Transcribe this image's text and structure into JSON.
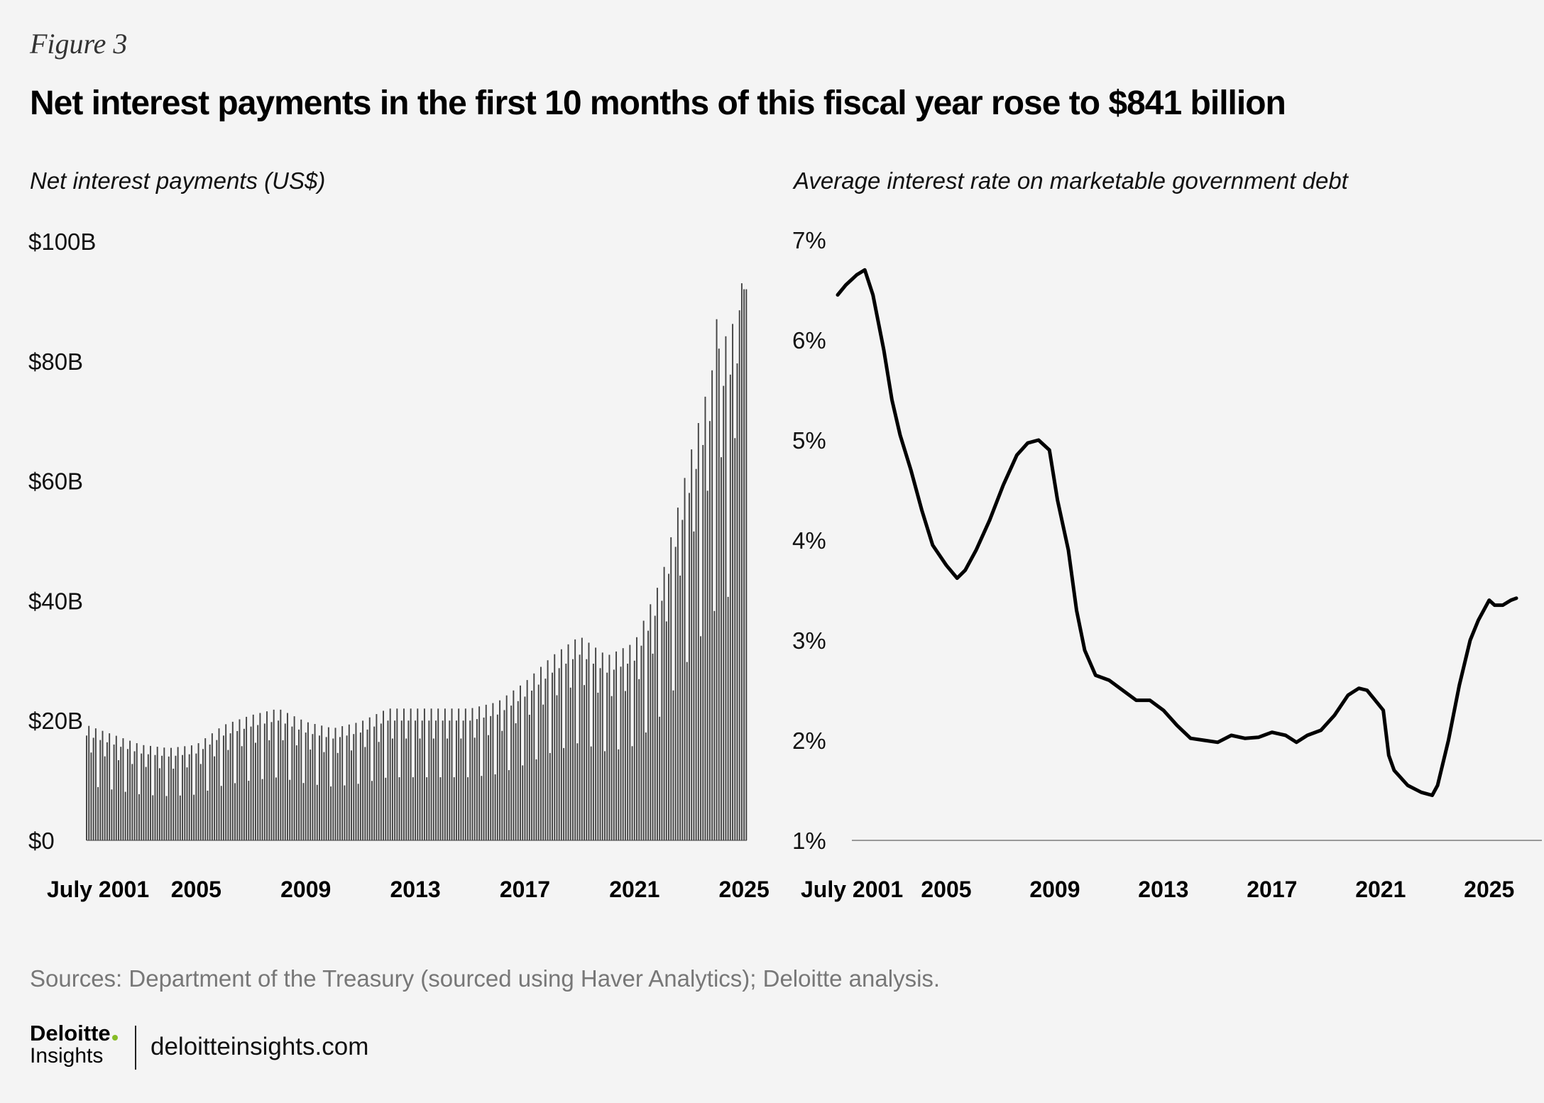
{
  "figure_label": "Figure 3",
  "title": "Net interest payments in the first 10 months of this fiscal year rose to $841 billion",
  "sources": "Sources: Department of the Treasury (sourced using Haver Analytics); Deloitte analysis.",
  "brand": {
    "name": "Deloitte",
    "subname": "Insights",
    "url": "deloitteinsights.com",
    "dot_color": "#86bc25"
  },
  "colors": {
    "background": "#f4f4f4",
    "bar": "#444444",
    "line": "#000000",
    "axis": "#999999"
  },
  "chart_data": [
    {
      "type": "bar",
      "subtitle": "Net interest payments (US$)",
      "ylim": [
        0,
        100
      ],
      "yticks": [
        0,
        20,
        40,
        60,
        80,
        100
      ],
      "ytick_labels": [
        "$0",
        "$20B",
        "$40B",
        "$60B",
        "$80B",
        "$100B"
      ],
      "xlim": [
        2001.5,
        2025.6
      ],
      "xticks": [
        2001.5,
        2005.5,
        2009.5,
        2013.5,
        2017.5,
        2021.5,
        2025.5
      ],
      "xtick_labels": [
        "July 2001",
        "2005",
        "2009",
        "2013",
        "2017",
        "2021",
        "2025"
      ],
      "start": "2001-07",
      "series_anchors": [
        [
          2001.5,
          17.5
        ],
        [
          2002.5,
          16
        ],
        [
          2003.5,
          14.5
        ],
        [
          2004.5,
          14
        ],
        [
          2005.5,
          14.5
        ],
        [
          2006.5,
          17.5
        ],
        [
          2007.5,
          19
        ],
        [
          2008.5,
          20
        ],
        [
          2009.5,
          18
        ],
        [
          2010.5,
          17
        ],
        [
          2011.5,
          18
        ],
        [
          2012.5,
          20
        ],
        [
          2013.5,
          20
        ],
        [
          2014.5,
          20
        ],
        [
          2015.5,
          20
        ],
        [
          2016.5,
          21
        ],
        [
          2017.5,
          24
        ],
        [
          2018.5,
          28
        ],
        [
          2019.5,
          31
        ],
        [
          2020.5,
          28
        ],
        [
          2021.5,
          30
        ],
        [
          2022.5,
          40
        ],
        [
          2023.5,
          58
        ],
        [
          2024.5,
          74
        ],
        [
          2025.3,
          80
        ],
        [
          2025.6,
          84
        ]
      ],
      "highlights": [
        [
          2024.5,
          87
        ],
        [
          2025.4,
          93
        ],
        [
          2025.55,
          92
        ]
      ]
    },
    {
      "type": "line",
      "subtitle": "Average interest rate on marketable government debt",
      "ylim": [
        1,
        7
      ],
      "yticks": [
        1,
        2,
        3,
        4,
        5,
        6,
        7
      ],
      "ytick_labels": [
        "1%",
        "2%",
        "3%",
        "4%",
        "5%",
        "6%",
        "7%"
      ],
      "xlim": [
        2001.5,
        2025.6
      ],
      "xticks": [
        2001.5,
        2005.5,
        2009.5,
        2013.5,
        2017.5,
        2021.5,
        2025.5
      ],
      "xtick_labels": [
        "July 2001",
        "2005",
        "2009",
        "2013",
        "2017",
        "2021",
        "2025"
      ],
      "points": [
        [
          2001.5,
          6.45
        ],
        [
          2001.8,
          6.55
        ],
        [
          2002.2,
          6.65
        ],
        [
          2002.5,
          6.7
        ],
        [
          2002.8,
          6.45
        ],
        [
          2003.2,
          5.9
        ],
        [
          2003.5,
          5.4
        ],
        [
          2003.8,
          5.05
        ],
        [
          2004.2,
          4.7
        ],
        [
          2004.6,
          4.3
        ],
        [
          2005.0,
          3.95
        ],
        [
          2005.5,
          3.75
        ],
        [
          2005.9,
          3.62
        ],
        [
          2006.2,
          3.7
        ],
        [
          2006.6,
          3.9
        ],
        [
          2007.1,
          4.2
        ],
        [
          2007.6,
          4.55
        ],
        [
          2008.1,
          4.85
        ],
        [
          2008.5,
          4.97
        ],
        [
          2008.9,
          5.0
        ],
        [
          2009.3,
          4.9
        ],
        [
          2009.6,
          4.4
        ],
        [
          2010.0,
          3.9
        ],
        [
          2010.3,
          3.3
        ],
        [
          2010.6,
          2.9
        ],
        [
          2011.0,
          2.65
        ],
        [
          2011.5,
          2.6
        ],
        [
          2012.0,
          2.5
        ],
        [
          2012.5,
          2.4
        ],
        [
          2013.0,
          2.4
        ],
        [
          2013.5,
          2.3
        ],
        [
          2014.0,
          2.15
        ],
        [
          2014.5,
          2.02
        ],
        [
          2015.0,
          2.0
        ],
        [
          2015.5,
          1.98
        ],
        [
          2016.0,
          2.05
        ],
        [
          2016.5,
          2.02
        ],
        [
          2017.0,
          2.03
        ],
        [
          2017.5,
          2.08
        ],
        [
          2018.0,
          2.05
        ],
        [
          2018.4,
          1.98
        ],
        [
          2018.8,
          2.05
        ],
        [
          2019.3,
          2.1
        ],
        [
          2019.8,
          2.25
        ],
        [
          2020.3,
          2.45
        ],
        [
          2020.7,
          2.52
        ],
        [
          2021.0,
          2.5
        ],
        [
          2021.3,
          2.4
        ],
        [
          2021.6,
          2.3
        ],
        [
          2021.8,
          1.85
        ],
        [
          2022.0,
          1.7
        ],
        [
          2022.5,
          1.55
        ],
        [
          2023.0,
          1.48
        ],
        [
          2023.4,
          1.45
        ],
        [
          2023.6,
          1.55
        ],
        [
          2024.0,
          2.0
        ],
        [
          2024.4,
          2.55
        ],
        [
          2024.8,
          3.0
        ],
        [
          2025.1,
          3.2
        ],
        [
          2025.5,
          3.4
        ],
        [
          2025.7,
          3.35
        ],
        [
          2026.0,
          3.35
        ],
        [
          2026.3,
          3.4
        ],
        [
          2026.5,
          3.42
        ]
      ]
    }
  ]
}
